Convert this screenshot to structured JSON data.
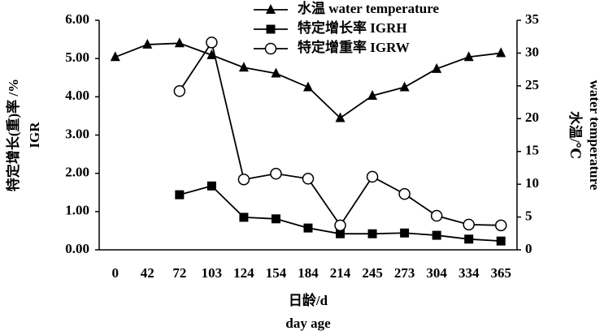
{
  "chart_data": {
    "type": "line",
    "categories": [
      "0",
      "42",
      "72",
      "103",
      "124",
      "154",
      "184",
      "214",
      "245",
      "273",
      "304",
      "334",
      "365"
    ],
    "x_label": [
      "日龄/d",
      "day age"
    ],
    "y_label": [
      "特定增长(重)率 /%",
      "IGR"
    ],
    "y2_label": [
      "水温/℃",
      "water temperature"
    ],
    "ylim": [
      0,
      6
    ],
    "yticks": [
      {
        "value": 0,
        "label": "0.00"
      },
      {
        "value": 1,
        "label": "1.00"
      },
      {
        "value": 2,
        "label": "2.00"
      },
      {
        "value": 3,
        "label": "3.00"
      },
      {
        "value": 4,
        "label": "4.00"
      },
      {
        "value": 5,
        "label": "5.00"
      },
      {
        "value": 6,
        "label": "6.00"
      }
    ],
    "y2lim": [
      0,
      35
    ],
    "y2ticks": [
      0,
      5,
      10,
      15,
      20,
      25,
      30,
      35
    ],
    "series": [
      {
        "name": "水温 water temperature",
        "color": "#000000",
        "marker": "triangle",
        "axis": "y2",
        "values": [
          29.4,
          31.3,
          31.5,
          29.7,
          27.8,
          26.9,
          24.8,
          20.1,
          23.5,
          24.8,
          27.6,
          29.4,
          30.0
        ]
      },
      {
        "name": "特定增长率 IGRH",
        "color": "#000000",
        "marker": "square",
        "values": [
          null,
          null,
          1.44,
          1.67,
          0.85,
          0.81,
          0.57,
          0.42,
          0.42,
          0.44,
          0.38,
          0.28,
          0.23
        ]
      },
      {
        "name": "特定增重率 IGRW",
        "color": "#000000",
        "marker": "circle",
        "values": [
          null,
          null,
          4.15,
          5.42,
          1.84,
          1.99,
          1.86,
          0.64,
          1.91,
          1.46,
          0.89,
          0.66,
          0.64
        ]
      }
    ]
  }
}
